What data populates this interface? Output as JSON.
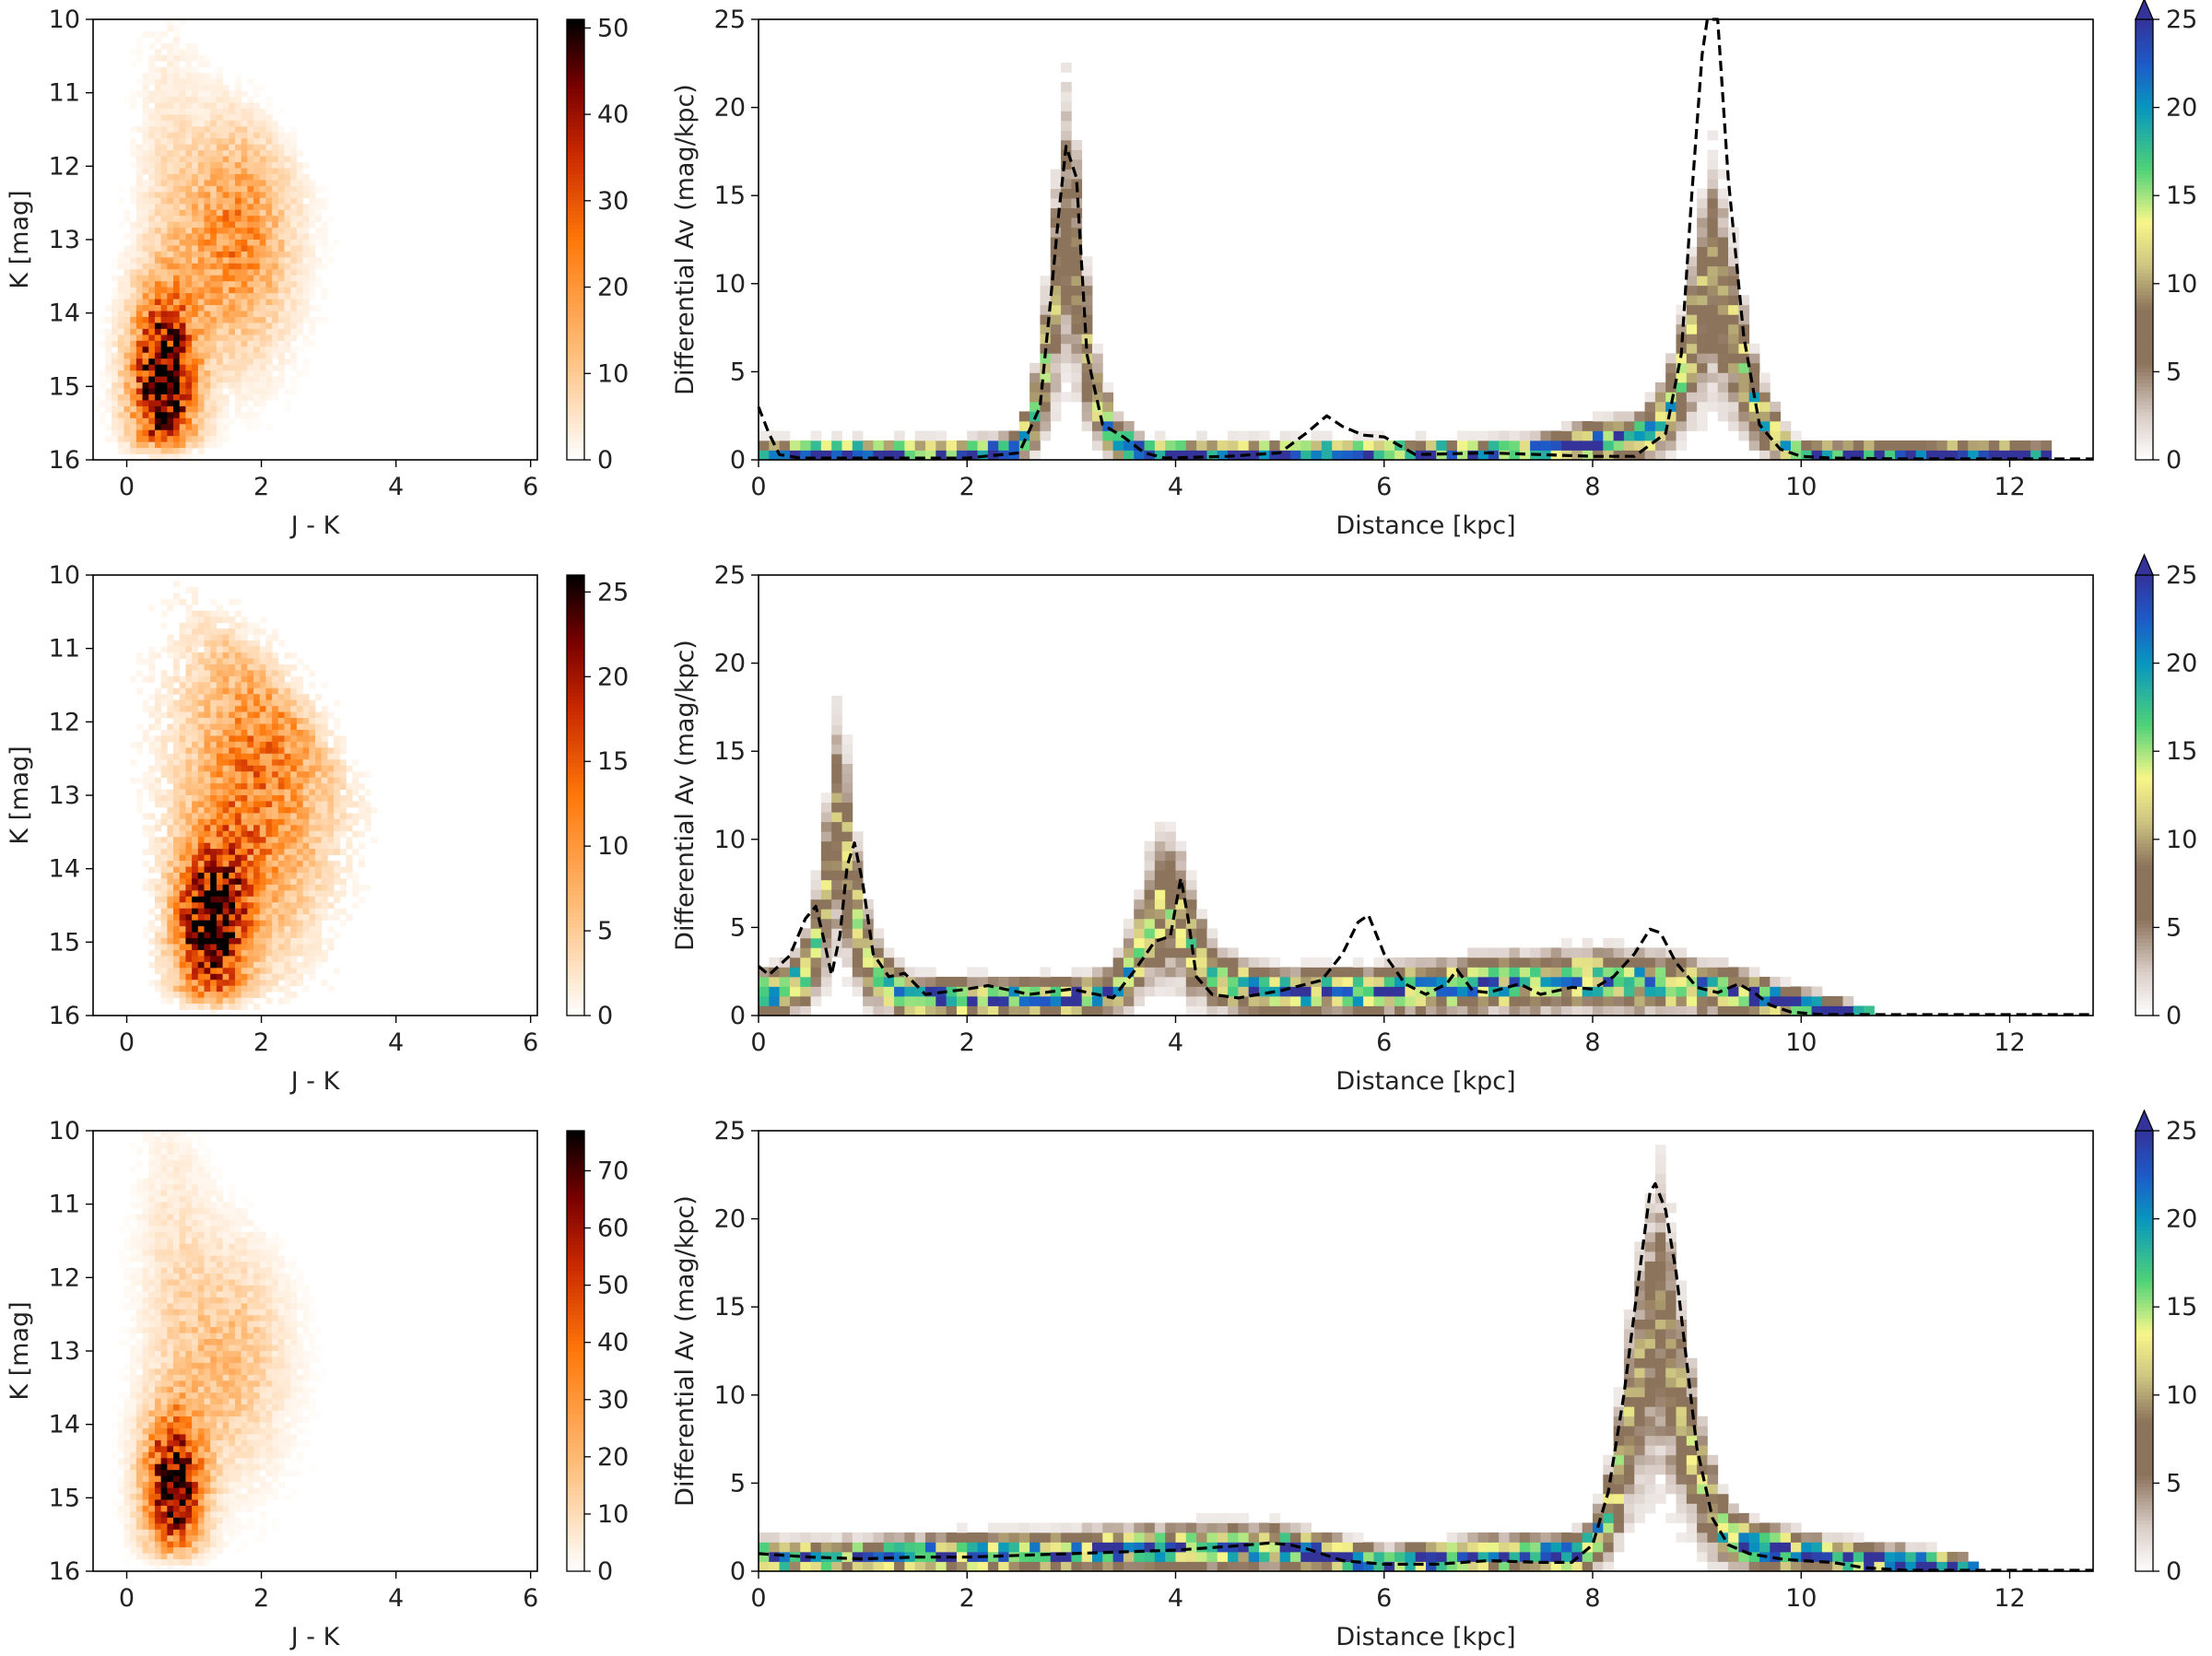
{
  "chart_data": [
    {
      "type": "heatmap",
      "panel": "cmd",
      "row": 1,
      "xlabel": "J - K",
      "ylabel": "K [mag]",
      "xlim": [
        -0.5,
        6.1
      ],
      "ylim": [
        10,
        16
      ],
      "xticks": [
        0,
        2,
        4,
        6
      ],
      "yticks": [
        10,
        11,
        12,
        13,
        14,
        15,
        16
      ],
      "colorbar": {
        "cmap": "gist_heat_r",
        "min": 0,
        "max": 51,
        "ticks": [
          0,
          10,
          20,
          30,
          40,
          50
        ]
      },
      "components": [
        {
          "x": 0.55,
          "y": 14.9,
          "sx": 0.33,
          "sy": 0.8,
          "peak": 51
        },
        {
          "x": 1.6,
          "y": 13.0,
          "sx": 0.55,
          "sy": 1.0,
          "peak": 22
        },
        {
          "x": 0.6,
          "y": 12.0,
          "sx": 0.3,
          "sy": 1.4,
          "peak": 4
        }
      ]
    },
    {
      "type": "heatmap",
      "panel": "extinction",
      "row": 1,
      "xlabel": "Distance [kpc]",
      "ylabel": "Differential Av (mag/kpc)",
      "xlim": [
        0,
        12.8
      ],
      "ylim": [
        0,
        25
      ],
      "xticks": [
        0,
        2,
        4,
        6,
        8,
        10,
        12
      ],
      "yticks": [
        0,
        5,
        10,
        15,
        20,
        25
      ],
      "colorbar": {
        "cmap": "terrain_r",
        "min": 0,
        "max": 25,
        "ticks": [
          0,
          5,
          10,
          15,
          20,
          25
        ],
        "extend": "max"
      },
      "band": {
        "x": [
          0,
          0.5,
          1,
          1.5,
          2,
          2.5,
          2.7,
          2.85,
          2.95,
          3.05,
          3.2,
          3.4,
          3.7,
          4,
          5,
          6,
          7,
          7.5,
          8,
          8.5,
          8.8,
          9.0,
          9.15,
          9.3,
          9.5,
          9.7,
          9.9,
          10.1,
          11,
          12,
          12.4
        ],
        "y": [
          0.4,
          0.4,
          0.4,
          0.4,
          0.4,
          0.6,
          3.5,
          9.5,
          13,
          11,
          4,
          1.3,
          0.4,
          0.4,
          0.4,
          0.4,
          0.4,
          0.5,
          1,
          1.3,
          3.5,
          8,
          10.5,
          8.5,
          4,
          1.8,
          0.5,
          0.3,
          0.3,
          0.3,
          0.3
        ]
      },
      "dashed_line": {
        "x": [
          0,
          0.1,
          0.2,
          0.4,
          1,
          2,
          2.5,
          2.7,
          2.8,
          2.88,
          2.95,
          3.05,
          3.15,
          3.3,
          3.5,
          3.7,
          3.9,
          4.5,
          5,
          5.25,
          5.45,
          5.6,
          5.8,
          6.0,
          6.3,
          7,
          7.5,
          8,
          8.4,
          8.7,
          8.85,
          8.95,
          9.05,
          9.1,
          9.2,
          9.3,
          9.45,
          9.6,
          9.8,
          10,
          10.3,
          11,
          12,
          12.8
        ],
        "y": [
          3,
          1.5,
          0.3,
          0.1,
          0.1,
          0.1,
          0.4,
          3,
          9,
          14,
          17.8,
          16,
          6,
          2,
          1.3,
          0.4,
          0.1,
          0.2,
          0.4,
          1.5,
          2.5,
          1.9,
          1.4,
          1.3,
          0.3,
          0.4,
          0.3,
          0.2,
          0.2,
          1.5,
          6,
          15,
          23,
          26,
          26,
          16,
          7,
          2,
          0.6,
          0.2,
          0.1,
          0.05,
          0.05,
          0.05
        ]
      }
    },
    {
      "type": "heatmap",
      "panel": "cmd",
      "row": 2,
      "xlabel": "J - K",
      "ylabel": "K [mag]",
      "xlim": [
        -0.5,
        6.1
      ],
      "ylim": [
        10,
        16
      ],
      "xticks": [
        0,
        2,
        4,
        6
      ],
      "yticks": [
        10,
        11,
        12,
        13,
        14,
        15,
        16
      ],
      "colorbar": {
        "cmap": "gist_heat_r",
        "min": 0,
        "max": 26,
        "ticks": [
          0,
          5,
          10,
          15,
          20,
          25
        ]
      },
      "components": [
        {
          "x": 1.25,
          "y": 14.8,
          "sx": 0.35,
          "sy": 0.7,
          "peak": 25
        },
        {
          "x": 1.9,
          "y": 13.2,
          "sx": 0.7,
          "sy": 1.3,
          "peak": 11
        },
        {
          "x": 2.3,
          "y": 11.4,
          "sx": 1.0,
          "sy": 1.2,
          "peak": 4
        }
      ]
    },
    {
      "type": "heatmap",
      "panel": "extinction",
      "row": 2,
      "xlabel": "Distance [kpc]",
      "ylabel": "Differential Av (mag/kpc)",
      "xlim": [
        0,
        12.8
      ],
      "ylim": [
        0,
        25
      ],
      "xticks": [
        0,
        2,
        4,
        6,
        8,
        10,
        12
      ],
      "yticks": [
        0,
        5,
        10,
        15,
        20,
        25
      ],
      "colorbar": {
        "cmap": "terrain_r",
        "min": 0,
        "max": 25,
        "ticks": [
          0,
          5,
          10,
          15,
          20,
          25
        ],
        "extend": "max"
      },
      "band": {
        "x": [
          0,
          0.3,
          0.5,
          0.65,
          0.75,
          0.85,
          1.0,
          1.2,
          1.5,
          2,
          3,
          3.4,
          3.6,
          3.75,
          3.9,
          4.05,
          4.2,
          4.4,
          4.7,
          5,
          6,
          7,
          8,
          8.5,
          9,
          9.5,
          10,
          10.5,
          10.7
        ],
        "y": [
          1.2,
          1.5,
          3,
          7,
          10.5,
          9,
          4,
          1.8,
          1,
          1,
          1,
          1.3,
          3,
          5.2,
          6.2,
          5.5,
          3.5,
          2,
          1.5,
          1.3,
          1.4,
          1.8,
          2,
          1.9,
          1.6,
          1.2,
          0.6,
          0.1,
          0
        ]
      },
      "dashed_line": {
        "x": [
          0,
          0.1,
          0.3,
          0.45,
          0.55,
          0.62,
          0.7,
          0.78,
          0.85,
          0.92,
          1.0,
          1.1,
          1.25,
          1.4,
          1.6,
          2.0,
          2.2,
          2.6,
          3.0,
          3.4,
          3.6,
          3.8,
          3.95,
          4.05,
          4.12,
          4.2,
          4.35,
          4.6,
          5.0,
          5.4,
          5.6,
          5.75,
          5.85,
          6.0,
          6.2,
          6.4,
          6.6,
          6.7,
          6.85,
          7.0,
          7.3,
          7.5,
          7.8,
          8.0,
          8.2,
          8.4,
          8.55,
          8.65,
          8.8,
          9.0,
          9.2,
          9.4,
          9.55,
          9.7,
          9.9,
          10.2,
          11,
          12,
          12.8
        ],
        "y": [
          2.8,
          2.3,
          3.4,
          5.5,
          6.2,
          4.5,
          2.3,
          4.5,
          8.5,
          9.8,
          7.5,
          3.5,
          2.2,
          2.4,
          1.2,
          1.5,
          1.7,
          1.2,
          1.5,
          1.0,
          2.5,
          4.2,
          4.5,
          7.8,
          5.5,
          2.2,
          1.2,
          1.0,
          1.4,
          2.0,
          3.5,
          5.3,
          5.7,
          3.5,
          1.8,
          1.2,
          1.8,
          2.6,
          1.4,
          1.3,
          1.8,
          1.2,
          1.6,
          1.5,
          2.2,
          3.5,
          4.9,
          4.7,
          3.0,
          1.6,
          1.3,
          1.8,
          1.3,
          0.6,
          0.2,
          0.05,
          0.05,
          0.05,
          0.05
        ]
      }
    },
    {
      "type": "heatmap",
      "panel": "cmd",
      "row": 3,
      "xlabel": "J - K",
      "ylabel": "K [mag]",
      "xlim": [
        -0.5,
        6.1
      ],
      "ylim": [
        10,
        16
      ],
      "xticks": [
        0,
        2,
        4,
        6
      ],
      "yticks": [
        10,
        11,
        12,
        13,
        14,
        15,
        16
      ],
      "colorbar": {
        "cmap": "gist_heat_r",
        "min": 0,
        "max": 77,
        "ticks": [
          0,
          10,
          20,
          30,
          40,
          50,
          60,
          70
        ]
      },
      "components": [
        {
          "x": 0.7,
          "y": 14.8,
          "sx": 0.3,
          "sy": 0.65,
          "peak": 72
        },
        {
          "x": 1.5,
          "y": 13.1,
          "sx": 0.55,
          "sy": 1.0,
          "peak": 18
        },
        {
          "x": 0.7,
          "y": 11.8,
          "sx": 0.35,
          "sy": 1.4,
          "peak": 7
        }
      ]
    },
    {
      "type": "heatmap",
      "panel": "extinction",
      "row": 3,
      "xlabel": "Distance [kpc]",
      "ylabel": "Differential Av (mag/kpc)",
      "xlim": [
        0,
        12.8
      ],
      "ylim": [
        0,
        25
      ],
      "xticks": [
        0,
        2,
        4,
        6,
        8,
        10,
        12
      ],
      "yticks": [
        0,
        5,
        10,
        15,
        20,
        25
      ],
      "colorbar": {
        "cmap": "terrain_r",
        "min": 0,
        "max": 25,
        "ticks": [
          0,
          5,
          10,
          15,
          20,
          25
        ],
        "extend": "max"
      },
      "band": {
        "x": [
          0,
          1,
          2,
          3,
          4,
          5,
          5.5,
          6,
          6.5,
          7,
          7.5,
          7.8,
          8.0,
          8.2,
          8.4,
          8.55,
          8.65,
          8.75,
          8.9,
          9.1,
          9.3,
          9.5,
          10,
          10.5,
          11,
          11.5,
          11.7
        ],
        "y": [
          0.8,
          0.8,
          1.0,
          1.1,
          1.3,
          1.3,
          0.9,
          0.5,
          0.7,
          0.9,
          1.0,
          0.9,
          1.5,
          4,
          10,
          13,
          14,
          12,
          8,
          4,
          2,
          1.5,
          1.0,
          0.7,
          0.5,
          0.3,
          0
        ]
      },
      "dashed_line": {
        "x": [
          0,
          0.5,
          1.0,
          1.5,
          2.0,
          2.5,
          3.0,
          3.5,
          4.0,
          4.5,
          4.9,
          5.1,
          5.3,
          5.6,
          6.0,
          6.5,
          7.0,
          7.5,
          7.8,
          8.0,
          8.15,
          8.3,
          8.45,
          8.55,
          8.6,
          8.7,
          8.8,
          8.9,
          9.0,
          9.15,
          9.3,
          9.5,
          9.8,
          10.0,
          10.3,
          10.6,
          11,
          12,
          12.8
        ],
        "y": [
          1.0,
          0.8,
          0.7,
          0.8,
          0.8,
          0.9,
          1.0,
          1.1,
          1.2,
          1.4,
          1.6,
          1.5,
          1.2,
          0.6,
          0.4,
          0.4,
          0.6,
          0.5,
          0.5,
          1.5,
          4.5,
          10,
          17,
          21.5,
          22,
          20.5,
          17,
          12,
          7,
          3,
          1.5,
          1.0,
          0.7,
          0.6,
          0.5,
          0.2,
          0.05,
          0.05,
          0.05
        ]
      }
    }
  ]
}
